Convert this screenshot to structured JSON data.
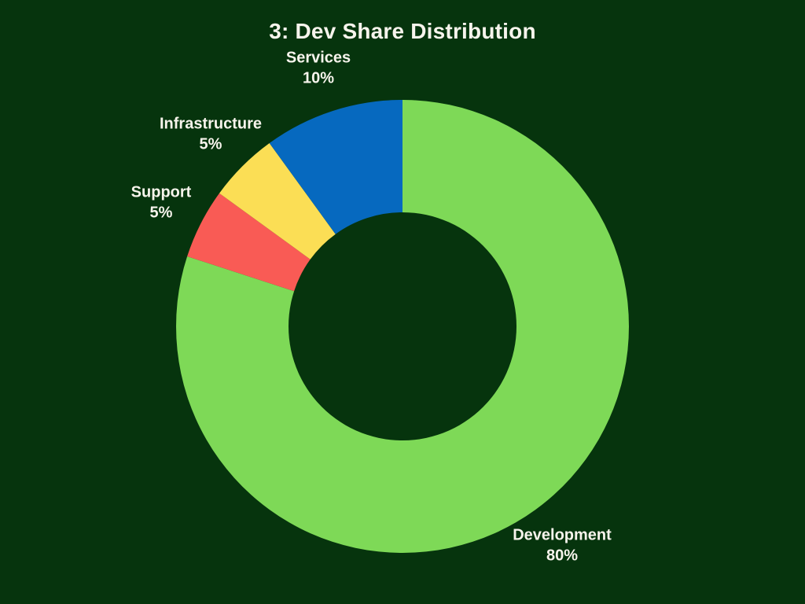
{
  "canvas": {
    "background_color": "#06340d",
    "text_color": "#f7f4ec"
  },
  "title": {
    "text": "3: Dev Share Distribution"
  },
  "chart_data": {
    "type": "pie",
    "subtype": "donut",
    "title": "3: Dev Share Distribution",
    "start_angle_deg": 90,
    "direction": "clockwise",
    "inner_radius_ratio": 0.5,
    "legend": "none",
    "categories": [
      "Development",
      "Support",
      "Infrastructure",
      "Services"
    ],
    "values": [
      80,
      5,
      5,
      10
    ],
    "segments": [
      {
        "label": "Development",
        "value": 80,
        "pct_label": "80%",
        "color": "#7ed957"
      },
      {
        "label": "Support",
        "value": 5,
        "pct_label": "5%",
        "color": "#f95b55"
      },
      {
        "label": "Infrastructure",
        "value": 5,
        "pct_label": "5%",
        "color": "#fbde55"
      },
      {
        "label": "Services",
        "value": 10,
        "pct_label": "10%",
        "color": "#0669bf"
      }
    ]
  }
}
